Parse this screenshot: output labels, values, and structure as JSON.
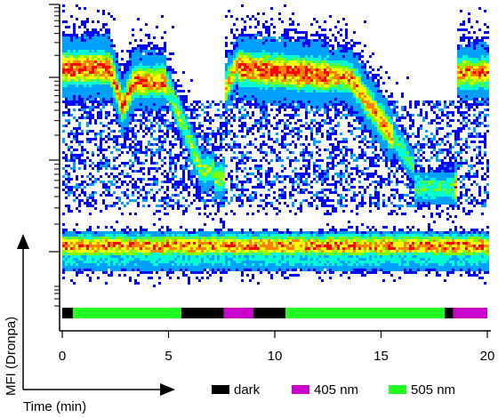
{
  "chart_data": {
    "type": "heatmap",
    "description_kind": "flow-cytometry density plot over time with illumination bar",
    "xlabel": "Time (min)",
    "ylabel": "MFI (Dronpa)",
    "xlim": [
      0,
      20
    ],
    "x_ticks": [
      0,
      5,
      10,
      15,
      20
    ],
    "y_scale": "log",
    "legend": [
      {
        "label": "dark",
        "color": "#000000"
      },
      {
        "label": "405 nm",
        "color": "#cc00cc"
      },
      {
        "label": "505 nm",
        "color": "#22ff22"
      }
    ],
    "illumination_segments": [
      {
        "start": 0.0,
        "end": 0.5,
        "state": "dark"
      },
      {
        "start": 0.5,
        "end": 5.6,
        "state": "505 nm"
      },
      {
        "start": 5.6,
        "end": 7.6,
        "state": "dark"
      },
      {
        "start": 7.6,
        "end": 9.0,
        "state": "405 nm"
      },
      {
        "start": 9.0,
        "end": 10.5,
        "state": "dark"
      },
      {
        "start": 10.5,
        "end": 18.0,
        "state": "505 nm"
      },
      {
        "start": 18.0,
        "end": 18.4,
        "state": "dark"
      },
      {
        "start": 18.4,
        "end": 20.0,
        "state": "405 nm"
      }
    ],
    "colormap": [
      "#0000ff",
      "#00a0ff",
      "#00ffd0",
      "#80ff00",
      "#ffff00",
      "#ff8000",
      "#ff0000"
    ]
  }
}
